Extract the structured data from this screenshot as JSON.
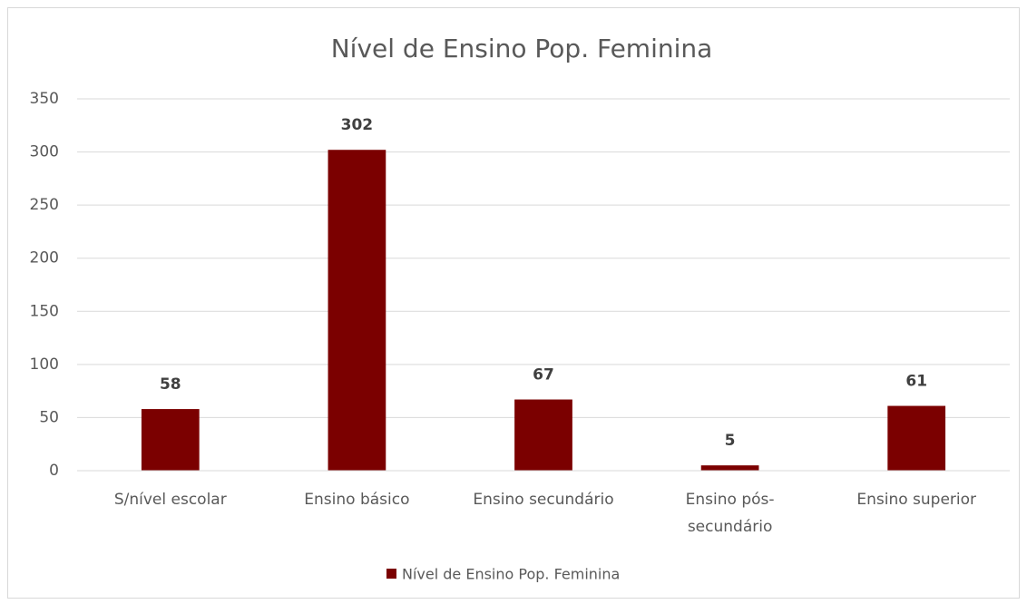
{
  "chart_data": {
    "type": "bar",
    "title": "Nível de Ensino Pop. Feminina",
    "categories": [
      "S/nível escolar",
      "Ensino básico",
      "Ensino secundário",
      "Ensino pós-secundário",
      "Ensino superior"
    ],
    "series": [
      {
        "name": "Nível de Ensino Pop. Feminina",
        "color": "#7b0000",
        "values": [
          58,
          302,
          67,
          5,
          61
        ]
      }
    ],
    "ylim": [
      0,
      350
    ],
    "yticks": [
      0,
      50,
      100,
      150,
      200,
      250,
      300,
      350
    ],
    "grid": true,
    "legend": "bottom"
  }
}
